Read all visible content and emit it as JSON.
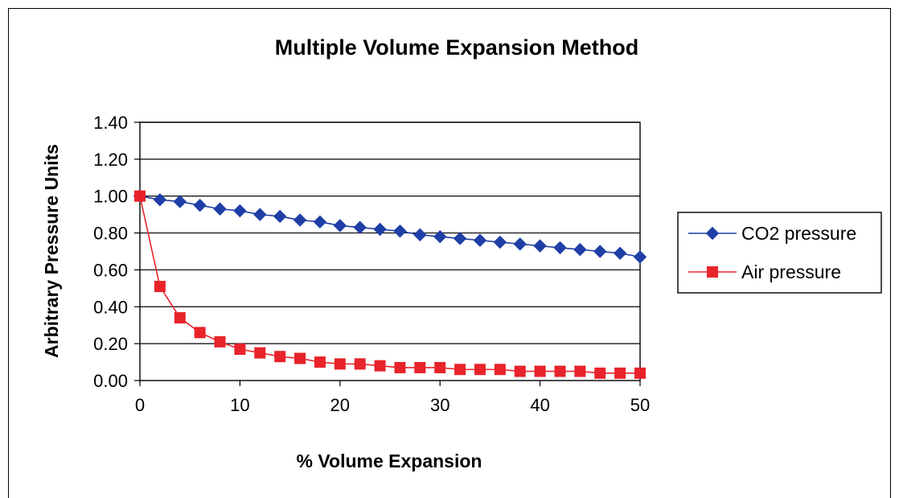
{
  "chart_data": {
    "type": "line",
    "title": "Multiple Volume Expansion Method",
    "xlabel": "% Volume Expansion",
    "ylabel": "Arbitrary Pressure Units",
    "xlim": [
      0,
      50
    ],
    "ylim": [
      0,
      1.4
    ],
    "x_ticks": [
      "0",
      "10",
      "20",
      "30",
      "40",
      "50"
    ],
    "y_ticks": [
      "0.00",
      "0.20",
      "0.40",
      "0.60",
      "0.80",
      "1.00",
      "1.20",
      "1.40"
    ],
    "grid": "horizontal",
    "legend_position": "right",
    "x": [
      0,
      2,
      4,
      6,
      8,
      10,
      12,
      14,
      16,
      18,
      20,
      22,
      24,
      26,
      28,
      30,
      32,
      34,
      36,
      38,
      40,
      42,
      44,
      46,
      48,
      50
    ],
    "series": [
      {
        "name": "CO2 pressure",
        "color": "#1f3fa6",
        "marker": "diamond",
        "values": [
          1.0,
          0.98,
          0.97,
          0.95,
          0.93,
          0.92,
          0.9,
          0.89,
          0.87,
          0.86,
          0.84,
          0.83,
          0.82,
          0.81,
          0.79,
          0.78,
          0.77,
          0.76,
          0.75,
          0.74,
          0.73,
          0.72,
          0.71,
          0.7,
          0.69,
          0.67
        ]
      },
      {
        "name": "Air pressure",
        "color": "#e8232a",
        "marker": "square",
        "values": [
          1.0,
          0.51,
          0.34,
          0.26,
          0.21,
          0.17,
          0.15,
          0.13,
          0.12,
          0.1,
          0.09,
          0.09,
          0.08,
          0.07,
          0.07,
          0.07,
          0.06,
          0.06,
          0.06,
          0.05,
          0.05,
          0.05,
          0.05,
          0.04,
          0.04,
          0.04
        ]
      }
    ]
  }
}
